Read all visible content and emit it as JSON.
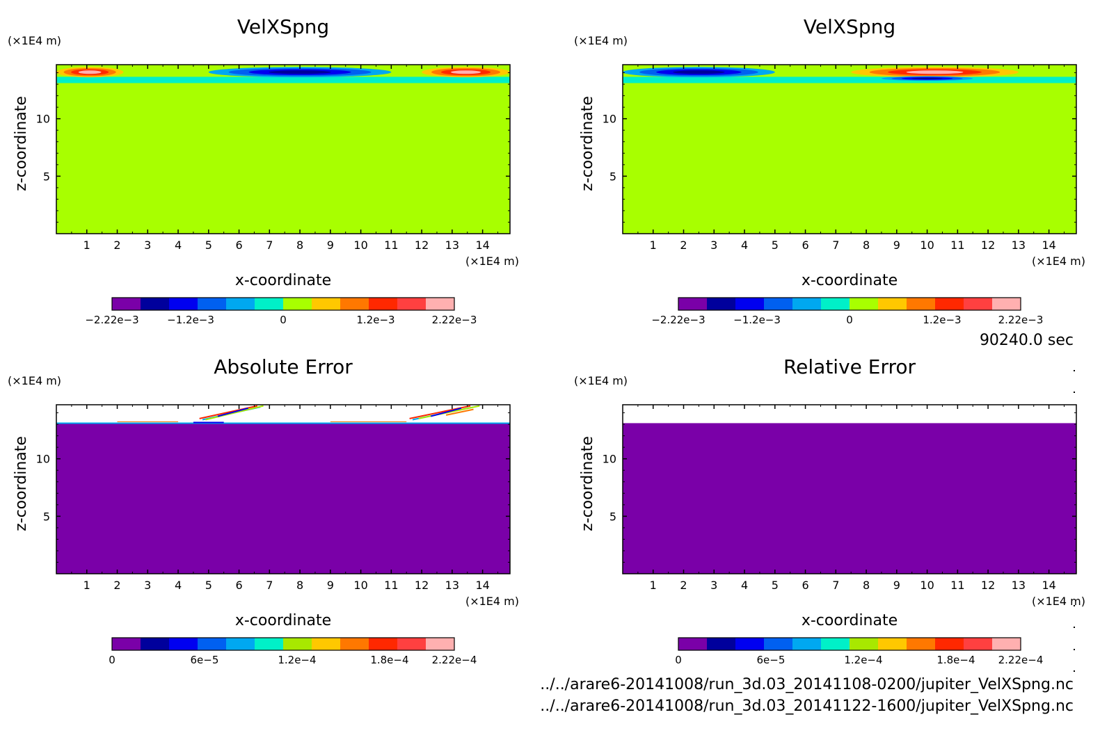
{
  "chart_data": [
    {
      "type": "heatmap",
      "title": "VelXSpng",
      "xlabel": "x-coordinate",
      "ylabel": "z-coordinate",
      "x_unit": "(×1E4 m)",
      "y_unit": "(×1E4 m)",
      "xlim": [
        0,
        14.9
      ],
      "ylim": [
        0,
        14.7
      ],
      "x_ticks": [
        "1",
        "2",
        "3",
        "4",
        "5",
        "6",
        "7",
        "8",
        "9",
        "10",
        "11",
        "12",
        "13",
        "14"
      ],
      "y_ticks": [
        "5",
        "10"
      ],
      "colorbar": {
        "range": [
          -0.00222,
          0.00222
        ],
        "colors": [
          "#7a00a8",
          "#00009c",
          "#0000f0",
          "#0060f0",
          "#00a8f0",
          "#00f0c8",
          "#a8ff00",
          "#ffc800",
          "#ff7800",
          "#ff2800",
          "#ff4040",
          "#ffb0b0"
        ],
        "ticks": [
          "−2.22e−3",
          "−1.2e−3",
          "0",
          "1.2e−3",
          "2.22e−3"
        ],
        "tick_values": [
          -0.00222,
          -0.0012,
          0,
          0.0012,
          0.00222
        ]
      },
      "field": {
        "background_value": 0,
        "features": [
          {
            "x": [
              0,
              2.2
            ],
            "z": [
              13.6,
              14.5
            ],
            "level": "positive"
          },
          {
            "x": [
              5,
              11
            ],
            "z": [
              13.6,
              14.5
            ],
            "level": "negative"
          },
          {
            "x": [
              12,
              14.9
            ],
            "z": [
              13.6,
              14.5
            ],
            "level": "positive"
          }
        ]
      }
    },
    {
      "type": "heatmap",
      "title": "VelXSpng",
      "xlabel": "x-coordinate",
      "ylabel": "z-coordinate",
      "x_unit": "(×1E4 m)",
      "y_unit": "(×1E4 m)",
      "xlim": [
        0,
        14.9
      ],
      "ylim": [
        0,
        14.7
      ],
      "x_ticks": [
        "1",
        "2",
        "3",
        "4",
        "5",
        "6",
        "7",
        "8",
        "9",
        "10",
        "11",
        "12",
        "13",
        "14"
      ],
      "y_ticks": [
        "5",
        "10"
      ],
      "colorbar": {
        "range": [
          -0.00222,
          0.00222
        ],
        "colors": [
          "#7a00a8",
          "#00009c",
          "#0000f0",
          "#0060f0",
          "#00a8f0",
          "#00f0c8",
          "#a8ff00",
          "#ffc800",
          "#ff7800",
          "#ff2800",
          "#ff4040",
          "#ffb0b0"
        ],
        "ticks": [
          "−2.22e−3",
          "−1.2e−3",
          "0",
          "1.2e−3",
          "2.22e−3"
        ],
        "tick_values": [
          -0.00222,
          -0.0012,
          0,
          0.0012,
          0.00222
        ]
      },
      "field": {
        "background_value": 0,
        "features": [
          {
            "x": [
              0,
              5
            ],
            "z": [
              13.6,
              14.5
            ],
            "level": "negative"
          },
          {
            "x": [
              7.5,
              13
            ],
            "z": [
              13.6,
              14.5
            ],
            "level": "positive"
          },
          {
            "x": [
              8.5,
              11.5
            ],
            "z": [
              13.3,
              13.7
            ],
            "level": "negative"
          }
        ]
      }
    },
    {
      "type": "heatmap",
      "title": "Absolute Error",
      "xlabel": "x-coordinate",
      "ylabel": "z-coordinate",
      "x_unit": "(×1E4 m)",
      "y_unit": "(×1E4 m)",
      "xlim": [
        0,
        14.9
      ],
      "ylim": [
        0,
        14.7
      ],
      "x_ticks": [
        "1",
        "2",
        "3",
        "4",
        "5",
        "6",
        "7",
        "8",
        "9",
        "10",
        "11",
        "12",
        "13",
        "14"
      ],
      "y_ticks": [
        "5",
        "10"
      ],
      "colorbar": {
        "range": [
          0,
          0.000222
        ],
        "colors": [
          "#7a00a8",
          "#00009c",
          "#0000f0",
          "#0060f0",
          "#00a8f0",
          "#00f0c8",
          "#a8e800",
          "#ffc800",
          "#ff7800",
          "#ff2800",
          "#ff4040",
          "#ffb0b0"
        ],
        "ticks": [
          "0",
          "6e−5",
          "1.2e−4",
          "1.8e−4",
          "2.22e−4"
        ],
        "tick_values": [
          0,
          6e-05,
          0.00012,
          0.00018,
          0.000222
        ]
      },
      "field": {
        "background_value": 0,
        "blank_above_z": 13.1
      }
    },
    {
      "type": "heatmap",
      "title": "Relative Error",
      "xlabel": "x-coordinate",
      "ylabel": "z-coordinate",
      "x_unit": "(×1E4 m)",
      "y_unit": "(×1E4 m)",
      "xlim": [
        0,
        14.9
      ],
      "ylim": [
        0,
        14.7
      ],
      "x_ticks": [
        "1",
        "2",
        "3",
        "4",
        "5",
        "6",
        "7",
        "8",
        "9",
        "10",
        "11",
        "12",
        "13",
        "14"
      ],
      "y_ticks": [
        "5",
        "10"
      ],
      "colorbar": {
        "range": [
          0,
          0.000222
        ],
        "colors": [
          "#7a00a8",
          "#00009c",
          "#0000f0",
          "#0060f0",
          "#00a8f0",
          "#00f0c8",
          "#a8e800",
          "#ffc800",
          "#ff7800",
          "#ff2800",
          "#ff4040",
          "#ffb0b0"
        ],
        "ticks": [
          "0",
          "6e−5",
          "1.2e−4",
          "1.8e−4",
          "2.22e−4"
        ],
        "tick_values": [
          0,
          6e-05,
          0.00012,
          0.00018,
          0.000222
        ]
      },
      "field": {
        "background_value": 0,
        "blank_above_z": 13.1
      }
    }
  ],
  "time_label": "90240.0 sec",
  "file_paths": [
    "../../arare6-20141008/run_3d.03_20141108-0200/jupiter_VelXSpng.nc",
    "../../arare6-20141008/run_3d.03_20141122-1600/jupiter_VelXSpng.nc"
  ]
}
